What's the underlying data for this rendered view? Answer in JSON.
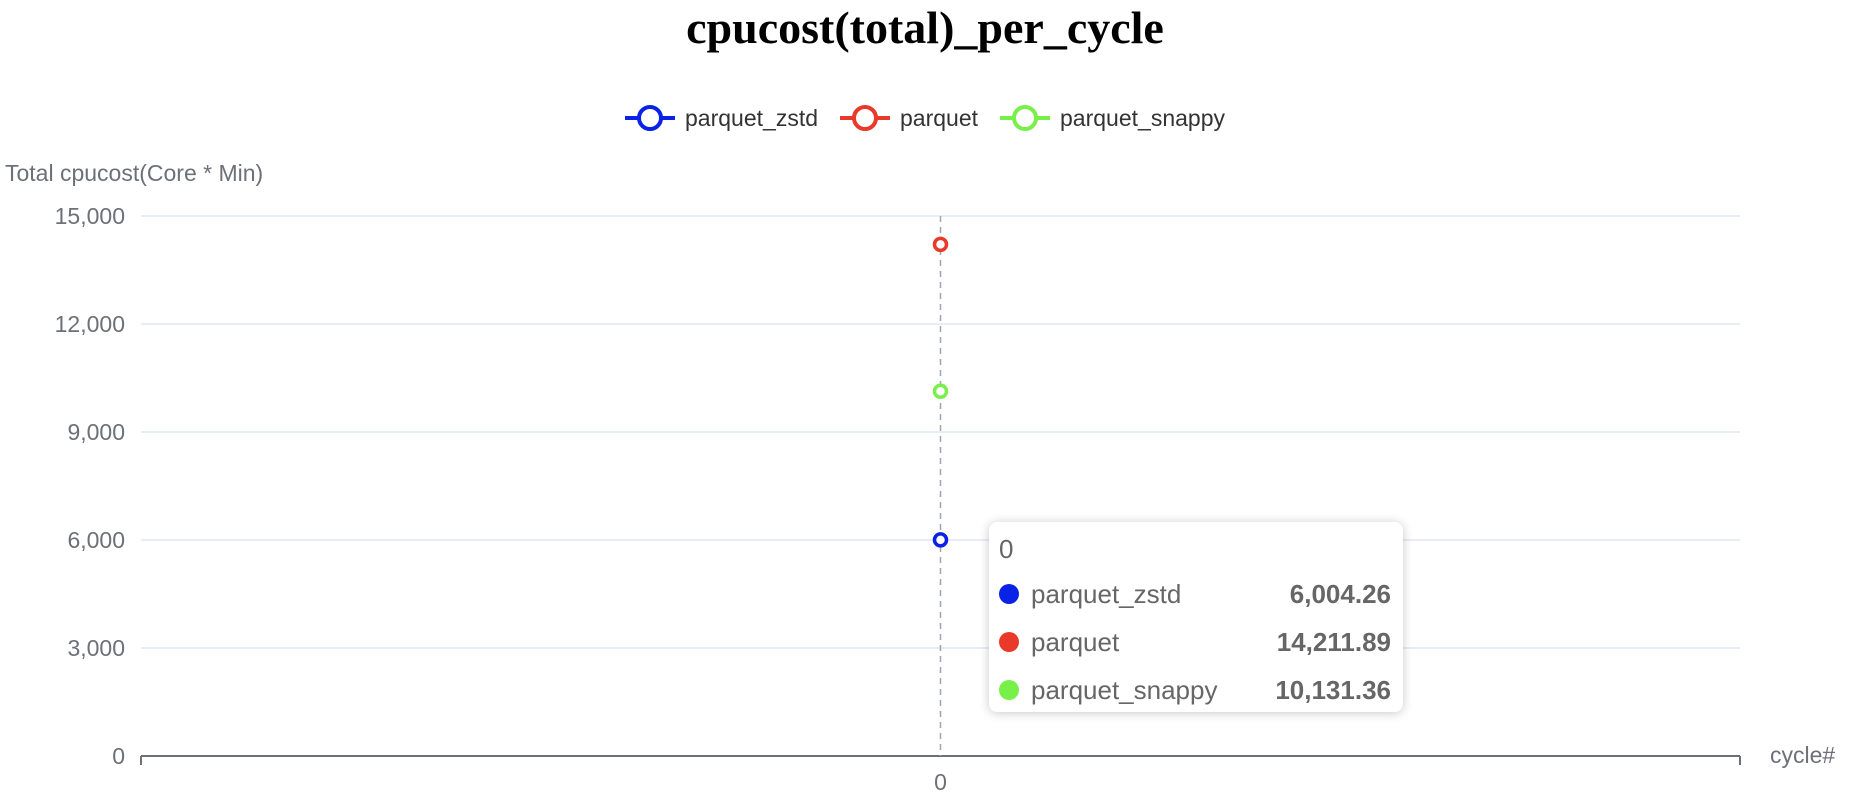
{
  "chart_data": {
    "type": "line",
    "title": "cpucost(total)_per_cycle",
    "xlabel": "cycle#",
    "ylabel": "Total cpucost(Core * Min)",
    "categories": [
      "0"
    ],
    "ylim": [
      0,
      15000
    ],
    "yticks": [
      "0",
      "3,000",
      "6,000",
      "9,000",
      "12,000",
      "15,000"
    ],
    "ytick_values": [
      0,
      3000,
      6000,
      9000,
      12000,
      15000
    ],
    "grid": true,
    "legend_position": "top-center",
    "series": [
      {
        "name": "parquet_zstd",
        "values": [
          6004.26
        ],
        "color": "#0a22e6"
      },
      {
        "name": "parquet",
        "values": [
          14211.89
        ],
        "color": "#e8392a"
      },
      {
        "name": "parquet_snappy",
        "values": [
          10131.36
        ],
        "color": "#79ef4a"
      }
    ]
  },
  "tooltip": {
    "header": "0",
    "rows": [
      {
        "name": "parquet_zstd",
        "value": "6,004.26",
        "color": "#0a22e6"
      },
      {
        "name": "parquet",
        "value": "14,211.89",
        "color": "#e8392a"
      },
      {
        "name": "parquet_snappy",
        "value": "10,131.36",
        "color": "#79ef4a"
      }
    ]
  }
}
